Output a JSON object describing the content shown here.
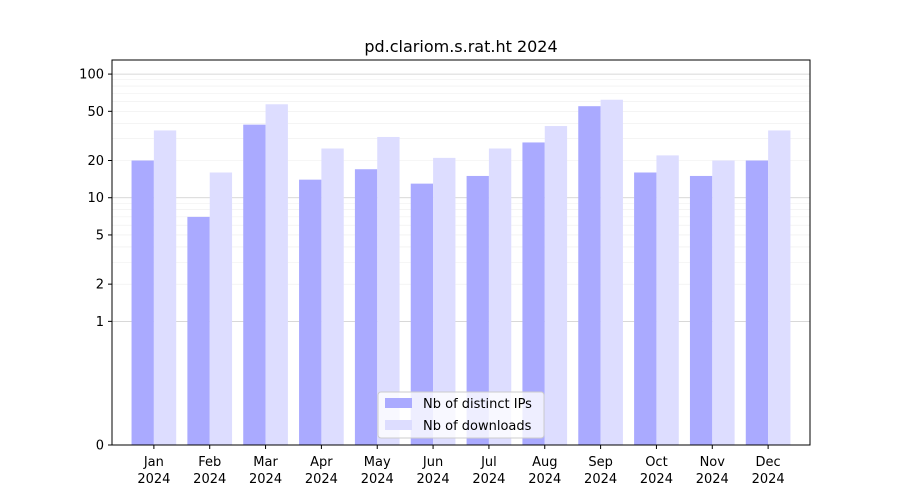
{
  "chart_data": {
    "type": "bar",
    "title": "pd.clariom.s.rat.ht 2024",
    "xlabel": "",
    "ylabel": "",
    "categories": [
      [
        "Jan",
        "2024"
      ],
      [
        "Feb",
        "2024"
      ],
      [
        "Mar",
        "2024"
      ],
      [
        "Apr",
        "2024"
      ],
      [
        "May",
        "2024"
      ],
      [
        "Jun",
        "2024"
      ],
      [
        "Jul",
        "2024"
      ],
      [
        "Aug",
        "2024"
      ],
      [
        "Sep",
        "2024"
      ],
      [
        "Oct",
        "2024"
      ],
      [
        "Nov",
        "2024"
      ],
      [
        "Dec",
        "2024"
      ]
    ],
    "series": [
      {
        "name": "Nb of distinct IPs",
        "color": "#aaaaff",
        "values": [
          20,
          7,
          39,
          14,
          17,
          13,
          15,
          28,
          55,
          16,
          15,
          20
        ]
      },
      {
        "name": "Nb of downloads",
        "color": "#ddddff",
        "values": [
          35,
          16,
          57,
          25,
          31,
          21,
          25,
          38,
          62,
          22,
          20,
          35
        ]
      }
    ],
    "y_scale": "symlog",
    "ylim": [
      0,
      130
    ],
    "y_ticks": [
      {
        "value": 0,
        "label": "0"
      },
      {
        "value": 1,
        "label": "1"
      },
      {
        "value": 2,
        "label": "2"
      },
      {
        "value": 5,
        "label": "5"
      },
      {
        "value": 10,
        "label": "10"
      },
      {
        "value": 20,
        "label": "20"
      },
      {
        "value": 50,
        "label": "50"
      },
      {
        "value": 100,
        "label": "100"
      }
    ],
    "grid": true,
    "legend_position": "bottom-center"
  }
}
